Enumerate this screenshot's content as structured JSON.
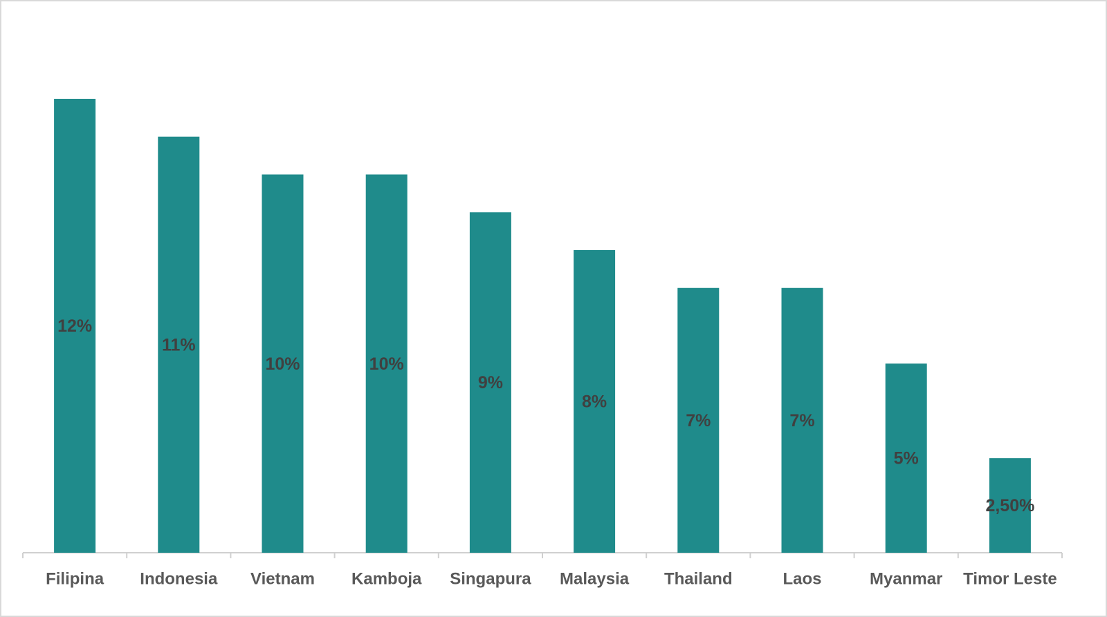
{
  "chart_data": {
    "type": "bar",
    "categories": [
      "Filipina",
      "Indonesia",
      "Vietnam",
      "Kamboja",
      "Singapura",
      "Malaysia",
      "Thailand",
      "Laos",
      "Myanmar",
      "Timor Leste"
    ],
    "values": [
      12,
      11,
      10,
      10,
      9,
      8,
      7,
      7,
      5,
      2.5
    ],
    "value_labels": [
      "12%",
      "11%",
      "10%",
      "10%",
      "9%",
      "8%",
      "7%",
      "7%",
      "5%",
      "2,50%"
    ],
    "color": "#1f8b8b"
  }
}
